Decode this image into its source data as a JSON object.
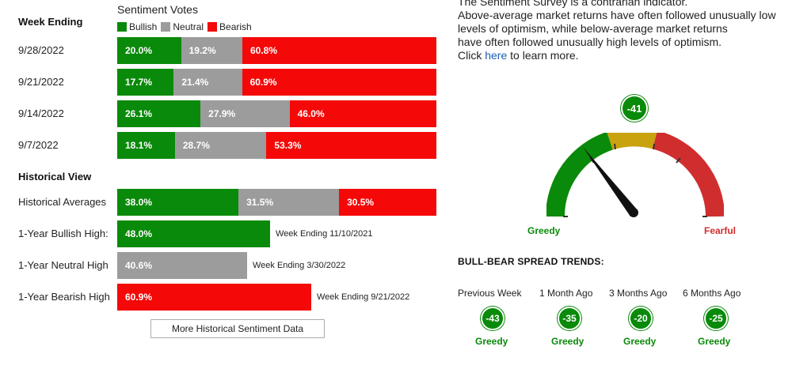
{
  "left": {
    "week_ending_header": "Week Ending",
    "votes_title": "Sentiment Votes",
    "legend": [
      {
        "label": "Bullish",
        "color": "#0a8a0a"
      },
      {
        "label": "Neutral",
        "color": "#9c9c9c"
      },
      {
        "label": "Bearish",
        "color": "#f40808"
      }
    ],
    "weekly_rows": [
      {
        "date": "9/28/2022",
        "bullish": "20.0%",
        "neutral": "19.2%",
        "bearish": "60.8%",
        "b": 20.0,
        "n": 19.2,
        "r": 60.8
      },
      {
        "date": "9/21/2022",
        "bullish": "17.7%",
        "neutral": "21.4%",
        "bearish": "60.9%",
        "b": 17.7,
        "n": 21.4,
        "r": 60.9
      },
      {
        "date": "9/14/2022",
        "bullish": "26.1%",
        "neutral": "27.9%",
        "bearish": "46.0%",
        "b": 26.1,
        "n": 27.9,
        "r": 46.0
      },
      {
        "date": "9/7/2022",
        "bullish": "18.1%",
        "neutral": "28.7%",
        "bearish": "53.3%",
        "b": 18.1,
        "n": 28.7,
        "r": 53.3
      }
    ],
    "historical_header": "Historical View",
    "historical_averages": {
      "label": "Historical Averages",
      "bullish": "38.0%",
      "neutral": "31.5%",
      "bearish": "30.5%",
      "b": 38.0,
      "n": 31.5,
      "r": 30.5
    },
    "highs": [
      {
        "label": "1-Year Bullish High:",
        "value": "48.0%",
        "v": 48.0,
        "type": "green",
        "note": "Week Ending 11/10/2021"
      },
      {
        "label": "1-Year Neutral High",
        "value": "40.6%",
        "v": 40.6,
        "type": "gray",
        "note": "Week Ending 3/30/2022"
      },
      {
        "label": "1-Year Bearish High",
        "value": "60.9%",
        "v": 60.9,
        "type": "red",
        "note": "Week Ending 9/21/2022"
      }
    ],
    "more_button": "More Historical Sentiment Data"
  },
  "right": {
    "desc_lines": [
      "The Sentiment Survey is a contrarian indicator.",
      "Above-average market returns have often followed unusually low",
      "levels of optimism, while below-average market returns",
      "have often followed unusually high levels of optimism."
    ],
    "click_prefix": "Click ",
    "click_link": "here",
    "click_suffix": " to learn more.",
    "gauge": {
      "value": "-41",
      "greedy_label": "Greedy",
      "fearful_label": "Fearful",
      "colors": {
        "green": "#0a8a0a",
        "gold": "#c9a20f",
        "red": "#d02e2e"
      }
    },
    "trends_title": "BULL-BEAR SPREAD TRENDS:",
    "trends": [
      {
        "label": "Previous Week",
        "value": "-43",
        "status": "Greedy"
      },
      {
        "label": "1 Month Ago",
        "value": "-35",
        "status": "Greedy"
      },
      {
        "label": "3 Months Ago",
        "value": "-20",
        "status": "Greedy"
      },
      {
        "label": "6 Months Ago",
        "value": "-25",
        "status": "Greedy"
      }
    ]
  }
}
